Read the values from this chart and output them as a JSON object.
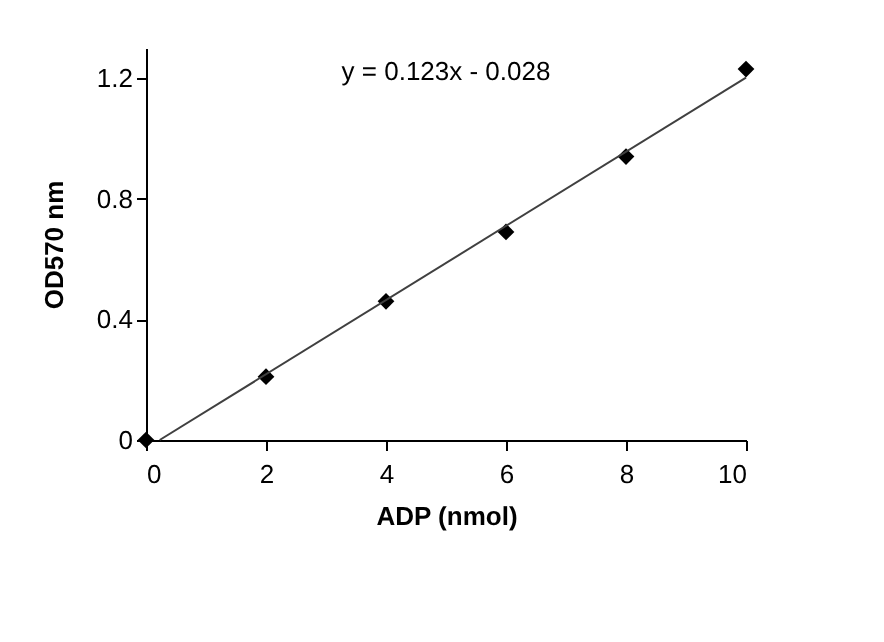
{
  "chart_data": {
    "type": "scatter",
    "xlabel": "ADP (nmol)",
    "ylabel": "OD570 nm",
    "x": [
      0,
      2,
      4,
      6,
      8,
      10
    ],
    "series": [
      {
        "type": "scatter",
        "color": "#000000",
        "marker": "diamond",
        "values": [
          0,
          0.21,
          0.46,
          0.69,
          0.94,
          1.23
        ]
      },
      {
        "type": "line",
        "color": "#404040",
        "marker": "none",
        "line_style": "solid",
        "x": [
          0.228,
          10
        ],
        "values": [
          0,
          1.202
        ]
      }
    ],
    "annotations": [
      "y = 0.123x - 0.028"
    ],
    "xlim": [
      0,
      10
    ],
    "xticks": [
      0,
      2,
      4,
      6,
      8,
      10
    ],
    "ylim": [
      0,
      1.3
    ],
    "yticks": [
      0,
      0.4,
      0.8,
      1.2
    ],
    "grid": false
  }
}
